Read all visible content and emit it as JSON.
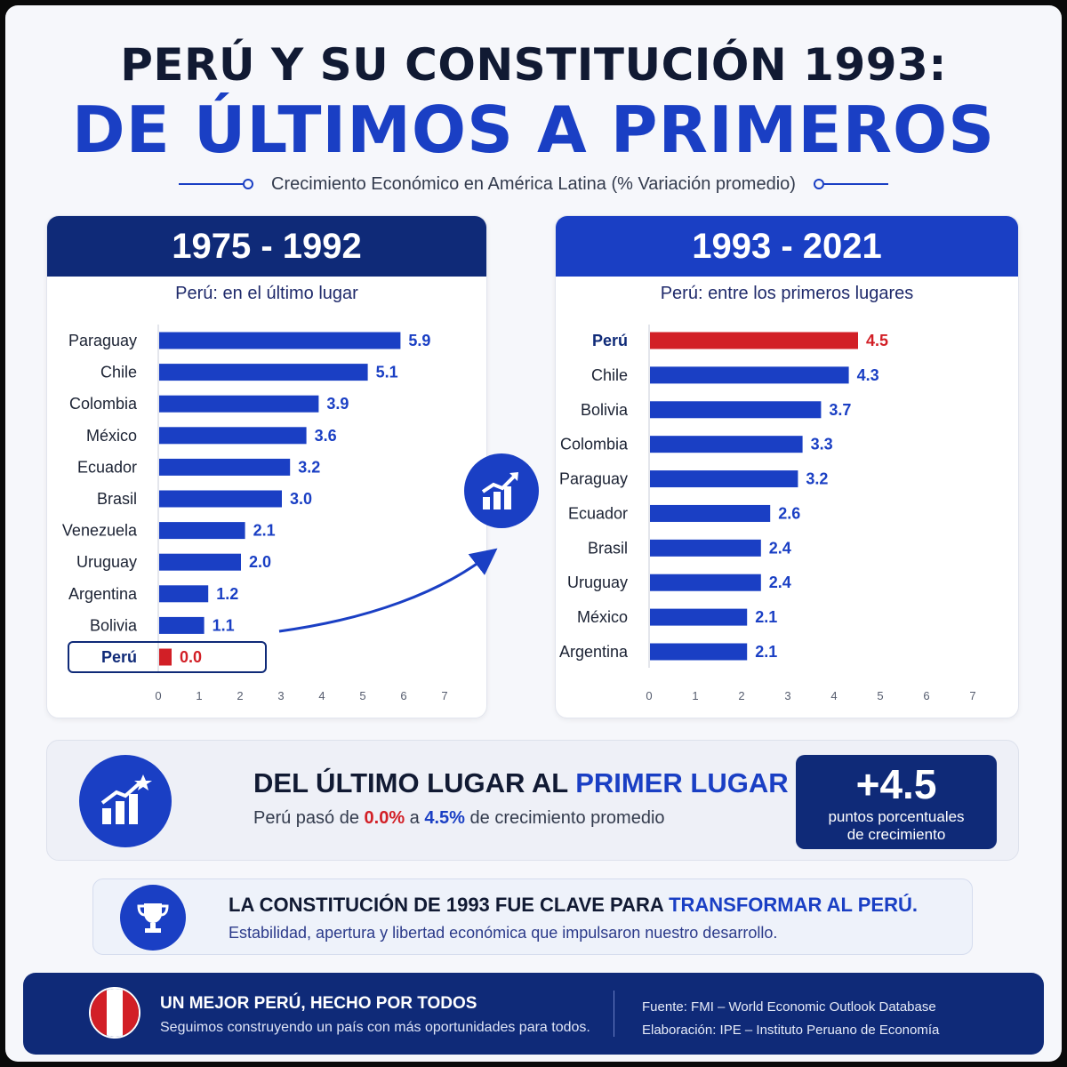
{
  "title_line1": "PERÚ Y SU CONSTITUCIÓN 1993:",
  "title_line2": "DE ÚLTIMOS A PRIMEROS",
  "subtitle": "Crecimiento Económico en América Latina (% Variación promedio)",
  "colors": {
    "navy": "#0f2a78",
    "blue": "#1a3fc4",
    "red": "#d21f26"
  },
  "chart_data": [
    {
      "type": "bar",
      "orientation": "horizontal",
      "title": "1975 - 1992",
      "subtitle": "Perú: en el último lugar",
      "categories": [
        "Paraguay",
        "Chile",
        "Colombia",
        "México",
        "Ecuador",
        "Brasil",
        "Venezuela",
        "Uruguay",
        "Argentina",
        "Bolivia",
        "Perú"
      ],
      "values": [
        5.9,
        5.1,
        3.9,
        3.6,
        3.2,
        3.0,
        2.1,
        2.0,
        1.2,
        1.1,
        0.0
      ],
      "labels": [
        "5.9",
        "5.1",
        "3.9",
        "3.6",
        "3.2",
        "3.0",
        "2.1",
        "2.0",
        "1.2",
        "1.1",
        "0.0"
      ],
      "highlight": "Perú",
      "xlim": [
        0,
        7
      ],
      "xticks": [
        "0",
        "1",
        "2",
        "3",
        "4",
        "5",
        "6",
        "7"
      ]
    },
    {
      "type": "bar",
      "orientation": "horizontal",
      "title": "1993 - 2021",
      "subtitle": "Perú: entre los primeros lugares",
      "categories": [
        "Perú",
        "Chile",
        "Bolivia",
        "Colombia",
        "Paraguay",
        "Ecuador",
        "Brasil",
        "Uruguay",
        "México",
        "Argentina"
      ],
      "values": [
        4.5,
        4.3,
        3.7,
        3.3,
        3.2,
        2.6,
        2.4,
        2.4,
        2.1,
        2.1
      ],
      "labels": [
        "4.5",
        "4.3",
        "3.7",
        "3.3",
        "3.2",
        "2.6",
        "2.4",
        "2.4",
        "2.1",
        "2.1"
      ],
      "highlight": "Perú",
      "xlim": [
        0,
        7
      ],
      "xticks": [
        "0",
        "1",
        "2",
        "3",
        "4",
        "5",
        "6",
        "7"
      ]
    }
  ],
  "summary": {
    "headline_a": "DEL ÚLTIMO LUGAR AL ",
    "headline_b": "PRIMER LUGAR",
    "desc_a": "Perú pasó de ",
    "desc_from": "0.0%",
    "desc_mid": " a ",
    "desc_to": "4.5%",
    "desc_end": " de crecimiento promedio",
    "stat_value": "+4.5",
    "stat_label1": "puntos porcentuales",
    "stat_label2": "de crecimiento"
  },
  "constitution": {
    "line1_a": "LA CONSTITUCIÓN DE 1993 FUE CLAVE PARA ",
    "line1_b": "TRANSFORMAR AL PERÚ.",
    "line2": "Estabilidad, apertura y libertad económica que impulsaron nuestro desarrollo."
  },
  "footer": {
    "slogan": "UN MEJOR PERÚ, HECHO POR TODOS",
    "slogan_sub": "Seguimos construyendo un país con más oportunidades para todos.",
    "source": "Fuente: FMI – World Economic Outlook Database",
    "elaboration": "Elaboración: IPE – Instituto Peruano de Economía"
  }
}
